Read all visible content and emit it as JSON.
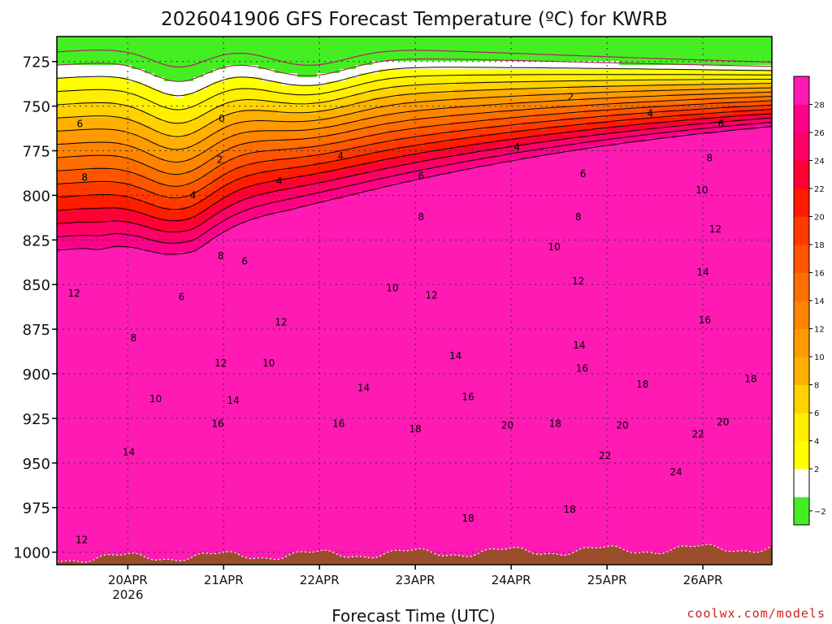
{
  "chart_data": {
    "type": "heatmap",
    "title": "2026041906 GFS Forecast Temperature (ºC) for KWRB",
    "xlabel": "Forecast Time (UTC)",
    "ylabel": "",
    "x_ticks": [
      "20APR",
      "21APR",
      "22APR",
      "23APR",
      "24APR",
      "25APR",
      "26APR"
    ],
    "x_tick_sublabels": [
      "2026",
      "",
      "",
      "",
      "",
      "",
      ""
    ],
    "x_range_days": [
      -0.74,
      6.72
    ],
    "y_ticks": [
      725,
      750,
      775,
      800,
      825,
      850,
      875,
      900,
      925,
      950,
      975,
      1000
    ],
    "y_range_hPa": [
      711,
      1007
    ],
    "grid": true,
    "colorbar": {
      "levels": [
        -2,
        0,
        2,
        4,
        6,
        8,
        10,
        12,
        14,
        16,
        18,
        20,
        22,
        24,
        26,
        28
      ],
      "tick_labels": [
        "−2",
        "2",
        "4",
        "6",
        "8",
        "10",
        "12",
        "14",
        "16",
        "18",
        "20",
        "22",
        "24",
        "26",
        "28"
      ],
      "colors": [
        "#44ee22",
        "#ffffff",
        "#ffff00",
        "#ffee00",
        "#ffd200",
        "#ffb000",
        "#ff9a00",
        "#ff8400",
        "#ff6e00",
        "#ff5400",
        "#ff3a00",
        "#ff1c00",
        "#ff0033",
        "#ff0066",
        "#ff0088",
        "#ff1ab4"
      ]
    },
    "contour_labels": [
      {
        "t": -0.5,
        "p": 760,
        "v": "6"
      },
      {
        "t": -0.45,
        "p": 790,
        "v": "8"
      },
      {
        "t": -0.56,
        "p": 855,
        "v": "12"
      },
      {
        "t": 0.06,
        "p": 880,
        "v": "8"
      },
      {
        "t": 0.29,
        "p": 914,
        "v": "10"
      },
      {
        "t": 0.01,
        "p": 944,
        "v": "14"
      },
      {
        "t": -0.48,
        "p": 993,
        "v": "12"
      },
      {
        "t": 0.68,
        "p": 800,
        "v": "4"
      },
      {
        "t": 0.98,
        "p": 757,
        "v": "0"
      },
      {
        "t": 0.96,
        "p": 780,
        "v": "2"
      },
      {
        "t": 0.56,
        "p": 857,
        "v": "6"
      },
      {
        "t": 0.97,
        "p": 834,
        "v": "8"
      },
      {
        "t": 0.97,
        "p": 894,
        "v": "12"
      },
      {
        "t": 1.1,
        "p": 915,
        "v": "14"
      },
      {
        "t": 0.94,
        "p": 928,
        "v": "16"
      },
      {
        "t": 1.58,
        "p": 792,
        "v": "4"
      },
      {
        "t": 1.22,
        "p": 837,
        "v": "6"
      },
      {
        "t": 1.6,
        "p": 871,
        "v": "12"
      },
      {
        "t": 1.47,
        "p": 894,
        "v": "10"
      },
      {
        "t": 2.46,
        "p": 908,
        "v": "14"
      },
      {
        "t": 2.2,
        "p": 928,
        "v": "16"
      },
      {
        "t": 2.22,
        "p": 778,
        "v": "4"
      },
      {
        "t": 3.06,
        "p": 789,
        "v": "6"
      },
      {
        "t": 3.06,
        "p": 812,
        "v": "8"
      },
      {
        "t": 2.76,
        "p": 852,
        "v": "10"
      },
      {
        "t": 3.17,
        "p": 856,
        "v": "12"
      },
      {
        "t": 3.42,
        "p": 890,
        "v": "14"
      },
      {
        "t": 3.55,
        "p": 913,
        "v": "16"
      },
      {
        "t": 3.0,
        "p": 931,
        "v": "18"
      },
      {
        "t": 3.55,
        "p": 981,
        "v": "18"
      },
      {
        "t": 4.06,
        "p": 773,
        "v": "4"
      },
      {
        "t": 4.62,
        "p": 745,
        "v": "2"
      },
      {
        "t": 4.75,
        "p": 788,
        "v": "6"
      },
      {
        "t": 4.7,
        "p": 812,
        "v": "8"
      },
      {
        "t": 4.45,
        "p": 829,
        "v": "10"
      },
      {
        "t": 4.7,
        "p": 848,
        "v": "12"
      },
      {
        "t": 4.71,
        "p": 884,
        "v": "14"
      },
      {
        "t": 4.74,
        "p": 897,
        "v": "16"
      },
      {
        "t": 3.96,
        "p": 929,
        "v": "20"
      },
      {
        "t": 4.46,
        "p": 928,
        "v": "18"
      },
      {
        "t": 4.61,
        "p": 976,
        "v": "18"
      },
      {
        "t": 5.45,
        "p": 754,
        "v": "4"
      },
      {
        "t": 6.19,
        "p": 760,
        "v": "6"
      },
      {
        "t": 6.07,
        "p": 779,
        "v": "8"
      },
      {
        "t": 5.99,
        "p": 797,
        "v": "10"
      },
      {
        "t": 6.13,
        "p": 819,
        "v": "12"
      },
      {
        "t": 6.0,
        "p": 843,
        "v": "14"
      },
      {
        "t": 6.02,
        "p": 870,
        "v": "16"
      },
      {
        "t": 5.37,
        "p": 906,
        "v": "18"
      },
      {
        "t": 6.5,
        "p": 903,
        "v": "18"
      },
      {
        "t": 5.16,
        "p": 929,
        "v": "20"
      },
      {
        "t": 6.21,
        "p": 927,
        "v": "20"
      },
      {
        "t": 4.98,
        "p": 946,
        "v": "22"
      },
      {
        "t": 5.95,
        "p": 934,
        "v": "22"
      },
      {
        "t": 5.72,
        "p": 955,
        "v": "24"
      }
    ]
  },
  "footer": {
    "credit": "coolwx.com/models"
  }
}
